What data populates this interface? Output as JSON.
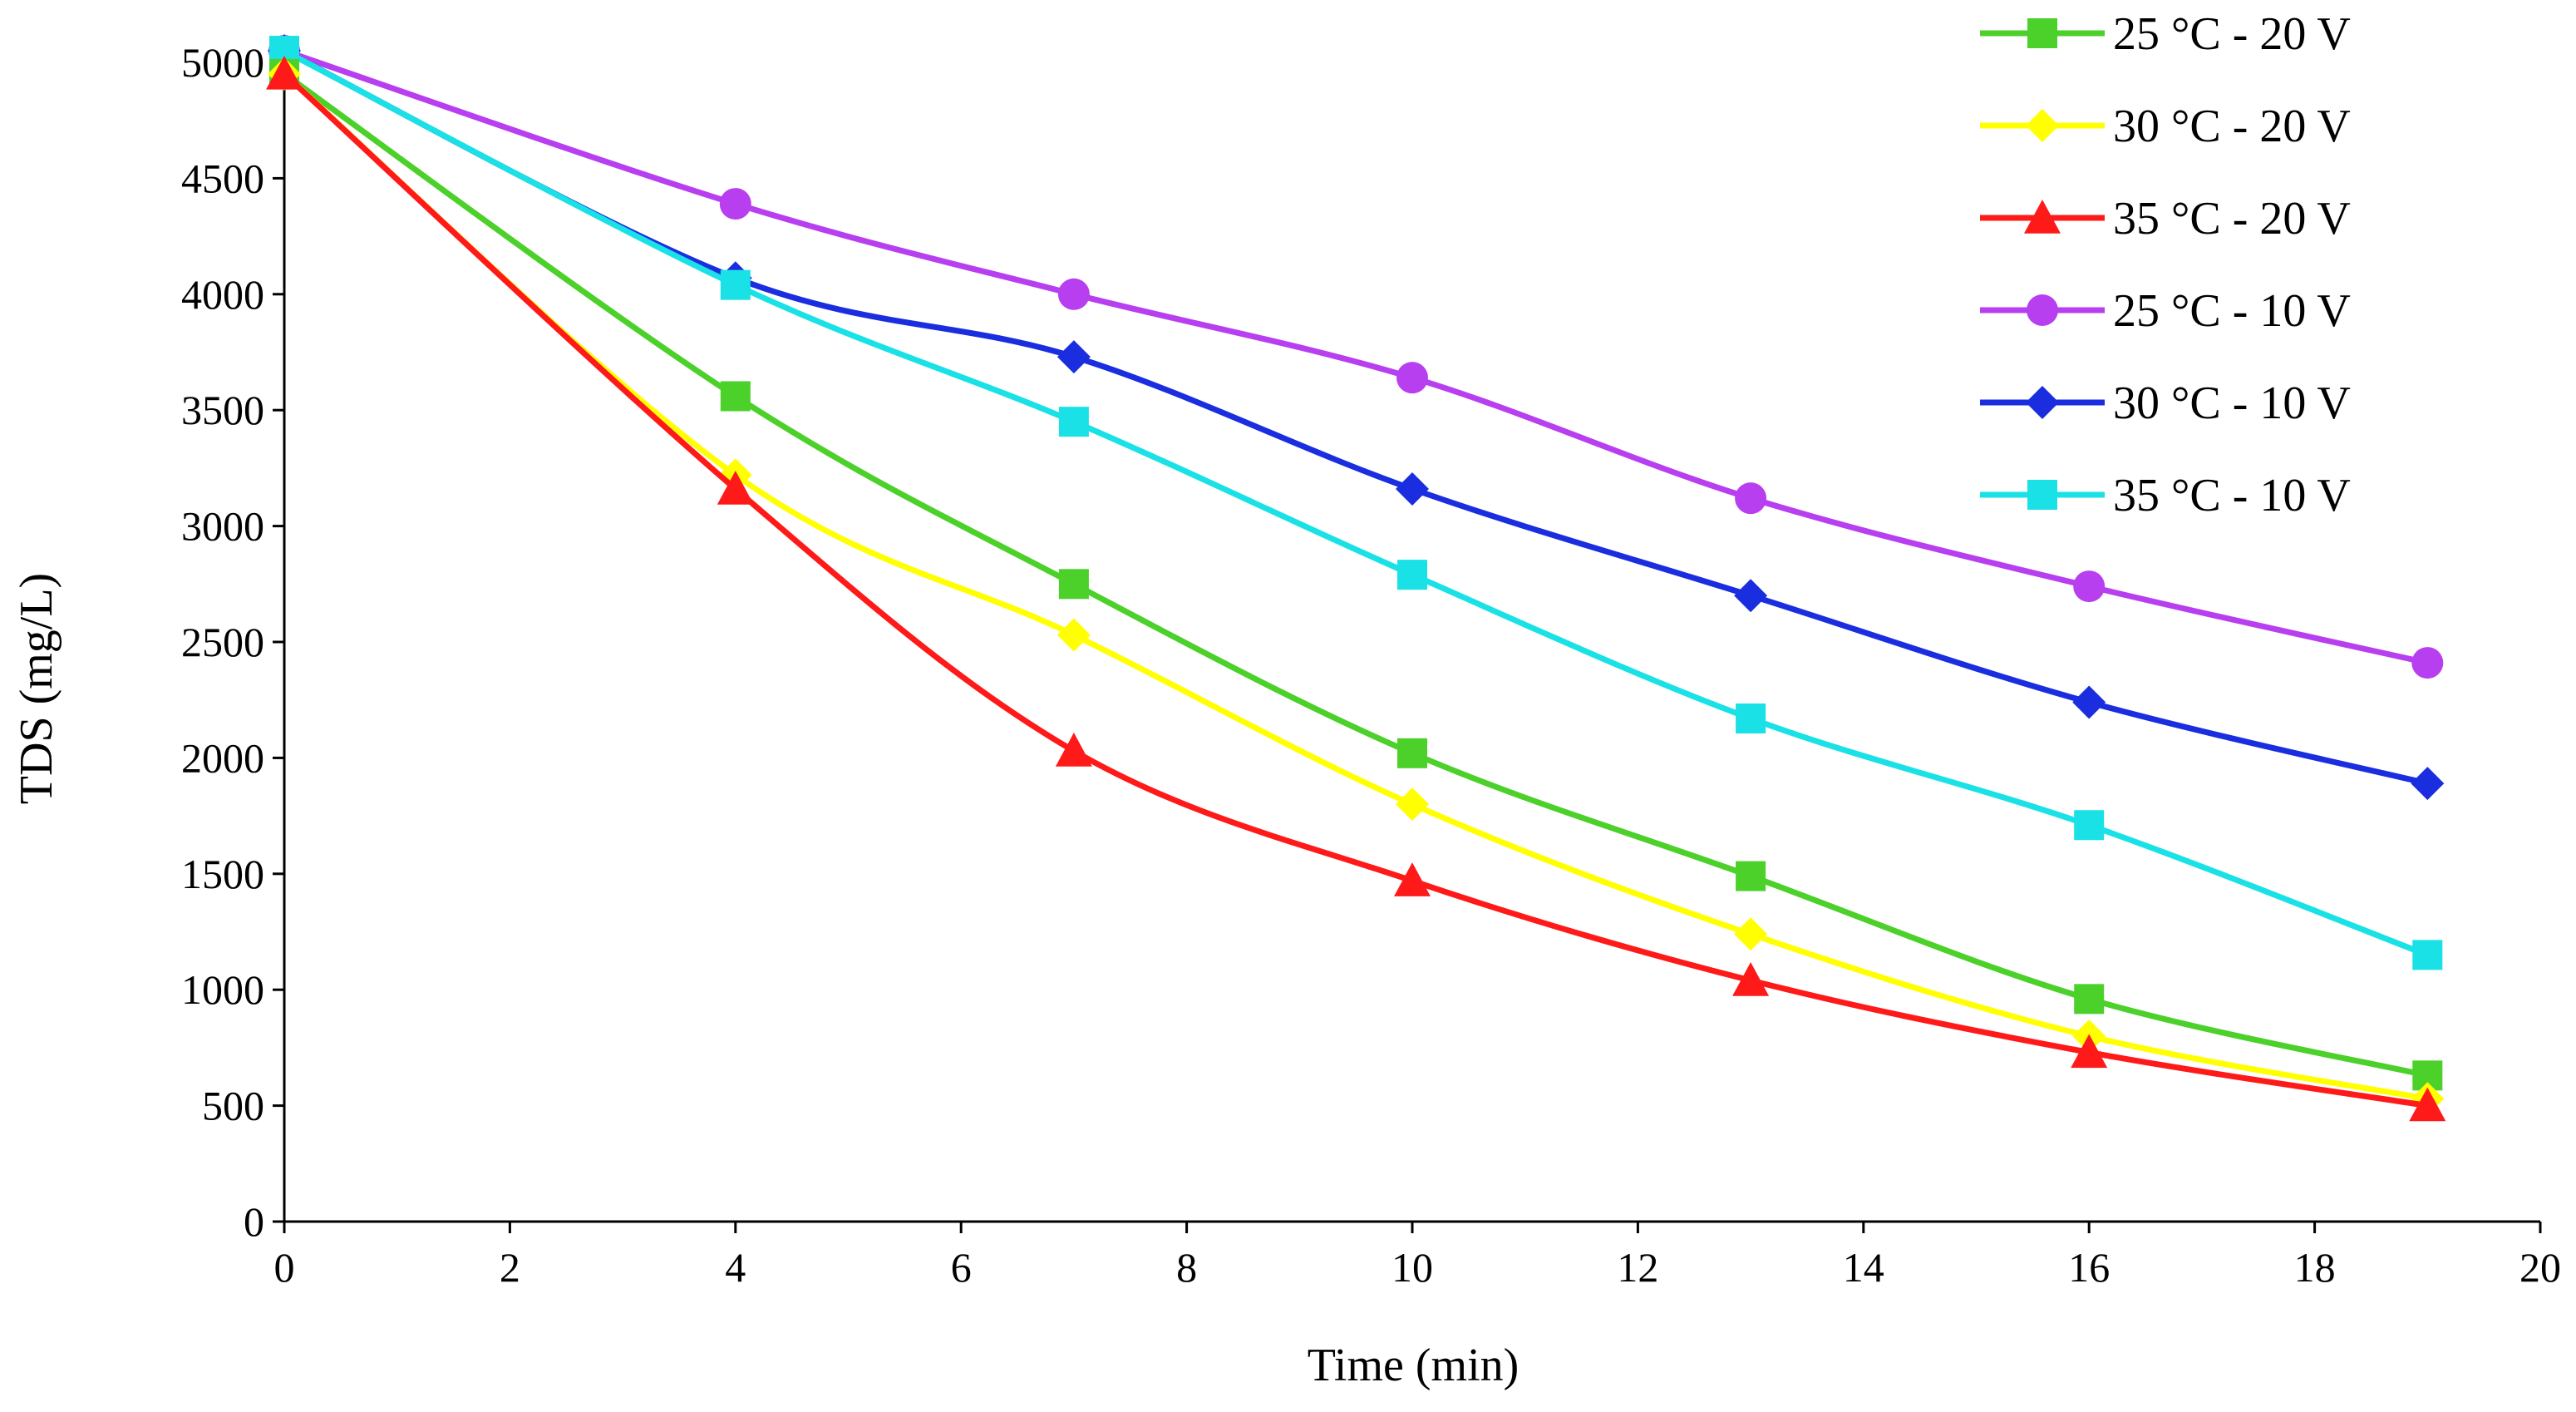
{
  "chart_data": {
    "type": "line",
    "title": "",
    "xlabel": "Time (min)",
    "ylabel": "TDS (mg/L)",
    "xlim": [
      0,
      20
    ],
    "ylim": [
      0,
      5000
    ],
    "xticks": [
      0,
      2,
      4,
      6,
      8,
      10,
      12,
      14,
      16,
      18,
      20
    ],
    "yticks": [
      0,
      500,
      1000,
      1500,
      2000,
      2500,
      3000,
      3500,
      4000,
      4500,
      5000
    ],
    "grid": false,
    "smooth": true,
    "legend_position": "top-right",
    "x": [
      0,
      4,
      7,
      10,
      13,
      16,
      19
    ],
    "series": [
      {
        "name": "25 °C - 20 V",
        "color": "#4cd02a",
        "marker": "square",
        "values": [
          4950,
          3560,
          2750,
          2020,
          1490,
          960,
          630
        ]
      },
      {
        "name": "30 °C - 20 V",
        "color": "#ffff00",
        "marker": "diamond",
        "values": [
          4950,
          3220,
          2530,
          1800,
          1240,
          800,
          530
        ]
      },
      {
        "name": "35 °C - 20 V",
        "color": "#ff1a1a",
        "marker": "triangle",
        "values": [
          4950,
          3160,
          2030,
          1470,
          1040,
          730,
          500
        ]
      },
      {
        "name": "25 °C - 10 V",
        "color": "#b83ff0",
        "marker": "circle",
        "values": [
          5050,
          4390,
          4000,
          3640,
          3120,
          2740,
          2410
        ]
      },
      {
        "name": "30 °C - 10 V",
        "color": "#1a2ee0",
        "marker": "diamond",
        "values": [
          5050,
          4070,
          3730,
          3160,
          2700,
          2240,
          1890
        ]
      },
      {
        "name": "35 °C - 10 V",
        "color": "#19e1e6",
        "marker": "square",
        "values": [
          5050,
          4040,
          3450,
          2790,
          2170,
          1710,
          1150
        ]
      }
    ]
  }
}
